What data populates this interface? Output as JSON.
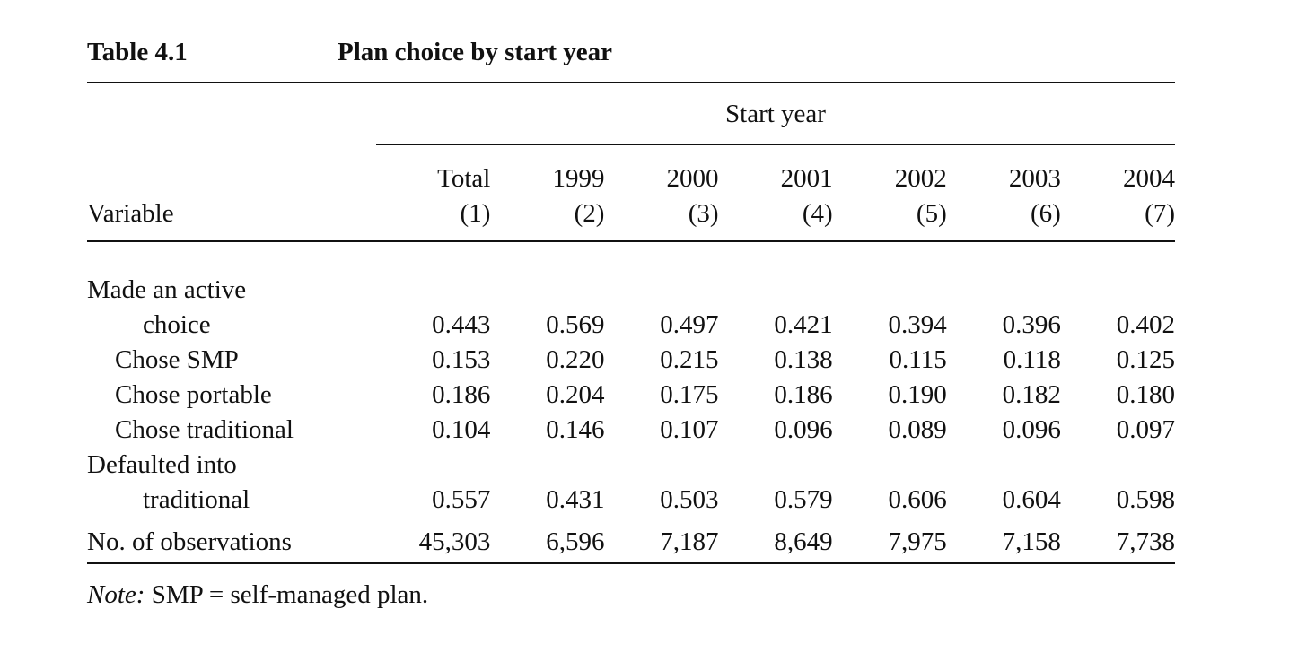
{
  "caption": {
    "label": "Table 4.1",
    "title": "Plan choice by start year"
  },
  "spanner": "Start year",
  "header": {
    "variable": "Variable",
    "columns": [
      {
        "top": "Total",
        "bottom": "(1)"
      },
      {
        "top": "1999",
        "bottom": "(2)"
      },
      {
        "top": "2000",
        "bottom": "(3)"
      },
      {
        "top": "2001",
        "bottom": "(4)"
      },
      {
        "top": "2002",
        "bottom": "(5)"
      },
      {
        "top": "2003",
        "bottom": "(6)"
      },
      {
        "top": "2004",
        "bottom": "(7)"
      }
    ]
  },
  "rows": {
    "active_line1": "Made an active",
    "active_line2": "choice",
    "active_values": [
      "0.443",
      "0.569",
      "0.497",
      "0.421",
      "0.394",
      "0.396",
      "0.402"
    ],
    "smp_label": "Chose SMP",
    "smp_values": [
      "0.153",
      "0.220",
      "0.215",
      "0.138",
      "0.115",
      "0.118",
      "0.125"
    ],
    "portable_label": "Chose portable",
    "portable_values": [
      "0.186",
      "0.204",
      "0.175",
      "0.186",
      "0.190",
      "0.182",
      "0.180"
    ],
    "traditional_label": "Chose traditional",
    "traditional_values": [
      "0.104",
      "0.146",
      "0.107",
      "0.096",
      "0.089",
      "0.096",
      "0.097"
    ],
    "defaulted_line1": "Defaulted into",
    "defaulted_line2": "traditional",
    "defaulted_values": [
      "0.557",
      "0.431",
      "0.503",
      "0.579",
      "0.606",
      "0.604",
      "0.598"
    ],
    "obs_label": "No. of observations",
    "obs_values": [
      "45,303",
      "6,596",
      "7,187",
      "8,649",
      "7,975",
      "7,158",
      "7,738"
    ]
  },
  "note": {
    "label": "Note:",
    "text": " SMP = self-managed plan."
  }
}
